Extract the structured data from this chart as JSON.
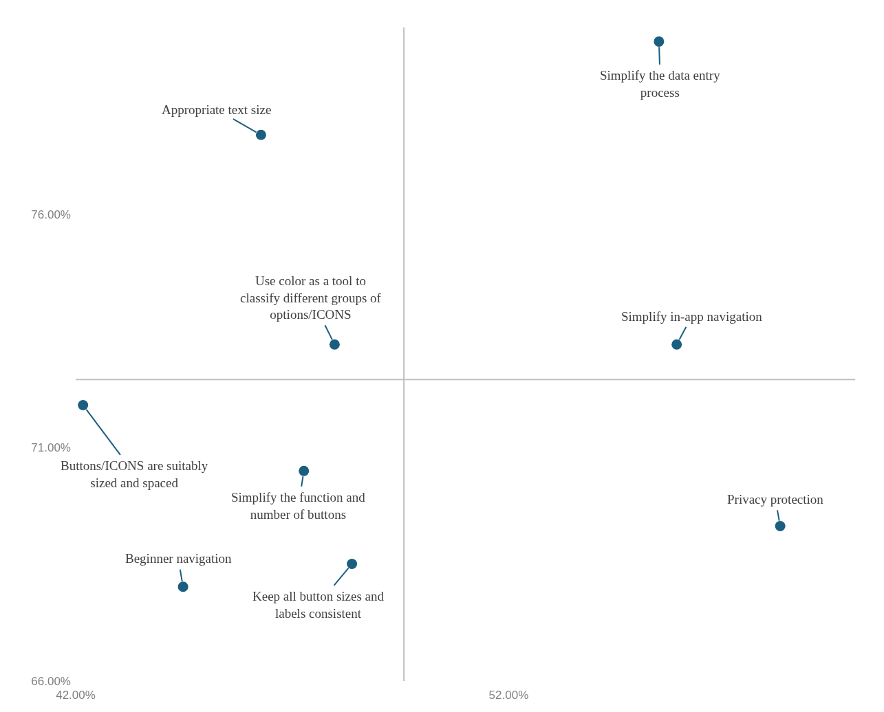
{
  "chart_data": {
    "type": "scatter",
    "marker": "circle",
    "x": [
      55.47,
      46.28,
      47.98,
      55.88,
      42.17,
      47.27,
      58.27,
      48.38,
      44.48
    ],
    "series": [
      {
        "color": "#1a5e80",
        "values": [
          79.7,
          77.7,
          73.21,
          73.21,
          71.91,
          70.5,
          69.32,
          68.51,
          68.02
        ]
      }
    ],
    "xlim": [
      42,
      60
    ],
    "ylim": [
      66,
      80
    ],
    "xticks": [
      {
        "value": 42,
        "label": "42.00%"
      },
      {
        "value": 52,
        "label": "52.00%"
      }
    ],
    "yticks": [
      {
        "value": 66,
        "label": "66.00%"
      },
      {
        "value": 71,
        "label": "71.00%"
      },
      {
        "value": 76,
        "label": "76.00%"
      }
    ],
    "ref_lines": [
      {
        "axis": "x",
        "value": 49.58,
        "color": "#bfbfbf"
      },
      {
        "axis": "y",
        "value": 72.46,
        "color": "#bfbfbf"
      }
    ],
    "annotations": [
      {
        "text": "Simplify the data entry\nprocess",
        "x": 55.47,
        "y": 79.7
      },
      {
        "text": "Appropriate text size",
        "x": 46.28,
        "y": 77.7
      },
      {
        "text": "Use color as a tool to\nclassify different groups of\noptions/ICONS",
        "x": 47.98,
        "y": 73.21
      },
      {
        "text": "Simplify in-app navigation",
        "x": 55.88,
        "y": 73.21
      },
      {
        "text": "Buttons/ICONS are suitably\nsized and spaced",
        "x": 42.17,
        "y": 71.91
      },
      {
        "text": "Simplify the function and\nnumber of buttons",
        "x": 47.27,
        "y": 70.5
      },
      {
        "text": "Privacy protection",
        "x": 58.27,
        "y": 69.32
      },
      {
        "text": "Keep all button sizes and\nlabels consistent",
        "x": 48.38,
        "y": 68.51
      },
      {
        "text": "Beginner navigation",
        "x": 44.48,
        "y": 68.02
      }
    ]
  }
}
